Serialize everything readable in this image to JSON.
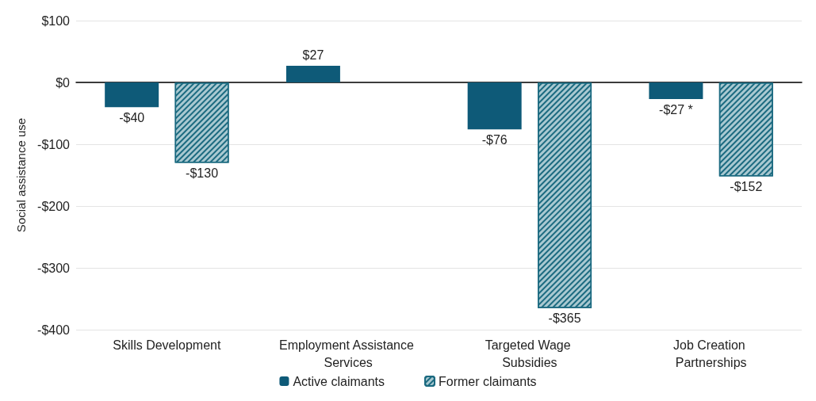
{
  "chart_data": {
    "type": "bar",
    "ylabel": "Social assistance use",
    "categories": [
      "Skills Development",
      "Employment Assistance Services",
      "Targeted Wage Subsidies",
      "Job Creation Partnerships"
    ],
    "series": [
      {
        "name": "Active claimants",
        "color": "#0e5a78",
        "values": [
          -40,
          27,
          -76,
          -27
        ],
        "value_labels": [
          "-$40",
          "$27",
          "-$76",
          "-$27 *"
        ]
      },
      {
        "name": "Former claimants",
        "color": "#a9c9d1",
        "values": [
          -130,
          null,
          -365,
          -152
        ],
        "value_labels": [
          "-$130",
          null,
          "-$365",
          "-$152"
        ]
      }
    ],
    "ylim": [
      -400,
      100
    ],
    "yticks": [
      {
        "value": -400,
        "label": "-$400"
      },
      {
        "value": -300,
        "label": "-$300"
      },
      {
        "value": -200,
        "label": "-$200"
      },
      {
        "value": -100,
        "label": "-$100"
      },
      {
        "value": 0,
        "label": "$0"
      },
      {
        "value": 100,
        "label": "$100"
      }
    ],
    "grid": "y",
    "legend": "bottom"
  }
}
